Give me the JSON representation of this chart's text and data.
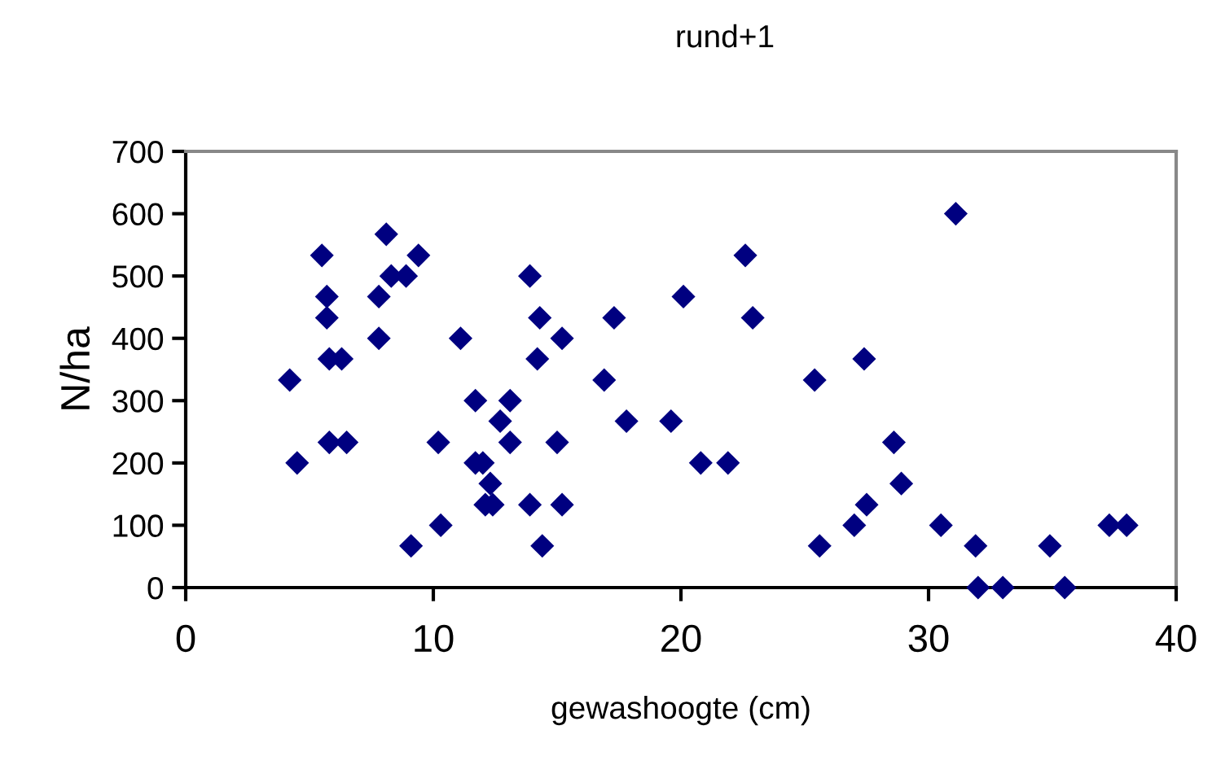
{
  "chart_data": {
    "type": "scatter",
    "title": "rund+1",
    "xlabel": "gewashoogte (cm)",
    "ylabel": "N/ha",
    "xlim": [
      0,
      40
    ],
    "xticks": [
      0,
      10,
      20,
      30,
      40
    ],
    "ylim": [
      0,
      700
    ],
    "yticks": [
      0,
      100,
      200,
      300,
      400,
      500,
      600,
      700
    ],
    "grid": false,
    "legend": false,
    "marker": "diamond",
    "series": [
      {
        "color": "#000080",
        "x": [
          4.2,
          4.5,
          5.5,
          5.7,
          5.7,
          5.8,
          5.8,
          6.3,
          6.5,
          7.8,
          7.8,
          8.1,
          8.3,
          8.9,
          9.1,
          9.4,
          10.2,
          10.3,
          11.1,
          11.7,
          11.7,
          12.0,
          12.1,
          12.3,
          12.4,
          12.7,
          13.1,
          13.1,
          13.9,
          13.9,
          14.2,
          14.3,
          14.4,
          15.0,
          15.2,
          15.2,
          16.9,
          17.3,
          17.8,
          19.6,
          20.1,
          20.8,
          21.9,
          22.6,
          22.9,
          25.4,
          25.6,
          27.0,
          27.4,
          27.5,
          28.6,
          28.9,
          30.5,
          31.1,
          31.9,
          32.0,
          33.0,
          34.9,
          35.5,
          37.3,
          38.0
        ],
        "values": [
          333,
          200,
          533,
          467,
          433,
          367,
          233,
          367,
          233,
          400,
          467,
          567,
          500,
          500,
          67,
          533,
          233,
          100,
          400,
          300,
          200,
          200,
          133,
          167,
          133,
          267,
          300,
          233,
          133,
          500,
          367,
          433,
          67,
          233,
          400,
          133,
          333,
          433,
          267,
          267,
          467,
          200,
          200,
          533,
          433,
          333,
          67,
          100,
          367,
          133,
          233,
          167,
          100,
          600,
          67,
          0,
          0,
          67,
          0,
          100,
          100
        ]
      }
    ]
  }
}
